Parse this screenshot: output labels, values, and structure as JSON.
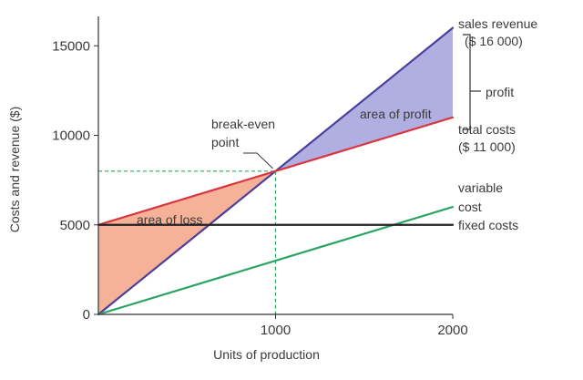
{
  "chart_data": {
    "type": "line",
    "xlabel": "Units of production",
    "ylabel": "Costs and revenue ($)",
    "xlim": [
      0,
      2000
    ],
    "ylim": [
      0,
      17000
    ],
    "xticks": [
      {
        "value": 1000,
        "label": "1000"
      },
      {
        "value": 2000,
        "label": "2000"
      }
    ],
    "yticks": [
      {
        "value": 0,
        "label": "0"
      },
      {
        "value": 5000,
        "label": "5000"
      },
      {
        "value": 10000,
        "label": "10000"
      },
      {
        "value": 15000,
        "label": "15000"
      }
    ],
    "series": [
      {
        "key": "sales",
        "color": "#4b3f9c",
        "x": [
          0,
          2000
        ],
        "y": [
          0,
          16000
        ]
      },
      {
        "key": "total",
        "color": "#d9363e",
        "x": [
          0,
          2000
        ],
        "y": [
          5000,
          11000
        ]
      },
      {
        "key": "variable",
        "color": "#2aa565",
        "x": [
          0,
          2000
        ],
        "y": [
          0,
          6000
        ]
      },
      {
        "key": "fixed",
        "color": "#222222",
        "x": [
          0,
          2000
        ],
        "y": [
          5000,
          5000
        ]
      }
    ],
    "break_even": {
      "x": 1000,
      "y": 8000
    },
    "regions": {
      "profit": {
        "color": "#a9a6df",
        "label": "area of profit"
      },
      "loss": {
        "color": "#f5a98e",
        "label": "area of loss"
      }
    },
    "annotations": {
      "sales_revenue": "sales revenue",
      "sales_value": "($ 16 000)",
      "profit": "profit",
      "total_costs": "total costs",
      "total_value": "($ 11 000)",
      "variable": "variable",
      "variable_cost": "cost",
      "fixed_costs": "fixed costs",
      "break_even_1": "break-even",
      "break_even_2": "point"
    },
    "legend": "none",
    "grid": false
  }
}
